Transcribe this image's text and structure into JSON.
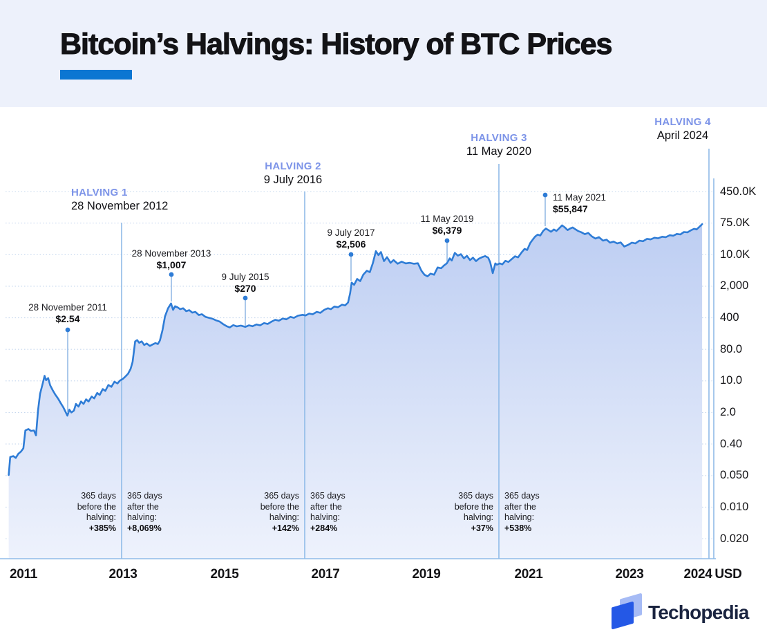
{
  "title": "Bitcoin’s Halvings: History of BTC Prices",
  "branding": {
    "logo_text": "Techopedia"
  },
  "colors": {
    "accent_bar": "#0b76d2",
    "halving_label": "#7d94e8",
    "price_line": "#2e7cd6",
    "halving_line": "#8fbbe8",
    "pointer_line": "#86b1e2",
    "grid": "#c6d7ee",
    "area_top": "#bccdf2",
    "area_bottom": "#eef2fc",
    "header_bg": "#edf1fb",
    "logo_dark": "#2458e6",
    "logo_light": "#a6bbf5",
    "logo_text": "#1a2440"
  },
  "halvings": [
    {
      "name": "HALVING 1",
      "date": "28 November 2012",
      "before": {
        "lines": [
          "365 days",
          "before the",
          "halving:"
        ],
        "pct": "+385%"
      },
      "after": {
        "lines": [
          "365 days",
          "after the",
          "halving:"
        ],
        "pct": "+8,069%"
      }
    },
    {
      "name": "HALVING 2",
      "date": "9 July 2016",
      "before": {
        "lines": [
          "365 days",
          "before the",
          "halving:"
        ],
        "pct": "+142%"
      },
      "after": {
        "lines": [
          "365 days",
          "after the",
          "halving:"
        ],
        "pct": "+284%"
      }
    },
    {
      "name": "HALVING 3",
      "date": "11 May 2020",
      "before": {
        "lines": [
          "365 days",
          "before the",
          "halving:"
        ],
        "pct": "+37%"
      },
      "after": {
        "lines": [
          "365 days",
          "after the",
          "halving:"
        ],
        "pct": "+538%"
      }
    },
    {
      "name": "HALVING 4",
      "date": "April 2024",
      "before": null,
      "after": null
    }
  ],
  "annotations": [
    {
      "date": "28 November 2011",
      "price": "$2.54"
    },
    {
      "date": "28 November 2013",
      "price": "$1,007"
    },
    {
      "date": "9 July 2015",
      "price": "$270"
    },
    {
      "date": "9 July 2017",
      "price": "$2,506"
    },
    {
      "date": "11 May 2019",
      "price": "$6,379"
    },
    {
      "date": "11 May 2021",
      "price": "$55,847"
    }
  ],
  "axis": {
    "x_labels": [
      "2011",
      "2013",
      "2015",
      "2017",
      "2019",
      "2021",
      "2023",
      "2024"
    ],
    "unit": "USD",
    "y_ticks": [
      {
        "label": "450.0K",
        "value": 450000
      },
      {
        "label": "75.0K",
        "value": 75000
      },
      {
        "label": "10.0K",
        "value": 10000
      },
      {
        "label": "2,000",
        "value": 2000
      },
      {
        "label": "400",
        "value": 400
      },
      {
        "label": "80.0",
        "value": 80
      },
      {
        "label": "10.0",
        "value": 10
      },
      {
        "label": "2.0",
        "value": 2
      },
      {
        "label": "0.40",
        "value": 0.4
      },
      {
        "label": "0.050",
        "value": 0.05
      },
      {
        "label": "0.010",
        "value": 0.01
      },
      {
        "label": "0.020",
        "value": 0.02
      }
    ]
  },
  "chart_data": {
    "type": "area",
    "title": "Bitcoin’s Halvings: History of BTC Prices",
    "x_unit": "year",
    "y_unit": "USD",
    "y_scale": "log (irregular round-number ticks as labeled)",
    "halving_events": [
      {
        "name": "HALVING 1",
        "date": "28 November 2012",
        "pct_365d_before": "+385%",
        "pct_365d_after": "+8,069%"
      },
      {
        "name": "HALVING 2",
        "date": "9 July 2016",
        "pct_365d_before": "+142%",
        "pct_365d_after": "+284%"
      },
      {
        "name": "HALVING 3",
        "date": "11 May 2020",
        "pct_365d_before": "+37%",
        "pct_365d_after": "+538%"
      },
      {
        "name": "HALVING 4",
        "date": "April 2024",
        "pct_365d_before": null,
        "pct_365d_after": null
      }
    ],
    "labeled_points": [
      {
        "date": "28 November 2011",
        "price_usd": 2.54
      },
      {
        "date": "28 November 2013",
        "price_usd": 1007
      },
      {
        "date": "9 July 2015",
        "price_usd": 270
      },
      {
        "date": "9 July 2017",
        "price_usd": 2506
      },
      {
        "date": "11 May 2019",
        "price_usd": 6379
      },
      {
        "date": "11 May 2021",
        "price_usd": 55847
      }
    ],
    "series": [
      {
        "name": "BTC price (USD)",
        "points": [
          [
            2010.71,
            0.052
          ],
          [
            2010.74,
            0.17
          ],
          [
            2010.8,
            0.18
          ],
          [
            2010.85,
            0.16
          ],
          [
            2010.9,
            0.21
          ],
          [
            2010.95,
            0.24
          ],
          [
            2011,
            0.3
          ],
          [
            2011.04,
            0.8
          ],
          [
            2011.1,
            0.86
          ],
          [
            2011.15,
            0.78
          ],
          [
            2011.21,
            0.8
          ],
          [
            2011.25,
            0.62
          ],
          [
            2011.29,
            2.2
          ],
          [
            2011.33,
            5.2
          ],
          [
            2011.38,
            8.5
          ],
          [
            2011.42,
            14
          ],
          [
            2011.45,
            10.5
          ],
          [
            2011.49,
            12
          ],
          [
            2011.53,
            8
          ],
          [
            2011.58,
            6.2
          ],
          [
            2011.63,
            5
          ],
          [
            2011.69,
            4
          ],
          [
            2011.74,
            3.2
          ],
          [
            2011.79,
            2.6
          ],
          [
            2011.83,
            2.1
          ],
          [
            2011.87,
            1.7
          ],
          [
            2011.91,
            2.3
          ],
          [
            2011.95,
            2
          ],
          [
            2012,
            2.2
          ],
          [
            2012.04,
            3.1
          ],
          [
            2012.09,
            2.7
          ],
          [
            2012.14,
            3.5
          ],
          [
            2012.19,
            3.1
          ],
          [
            2012.24,
            3.9
          ],
          [
            2012.29,
            3.5
          ],
          [
            2012.35,
            4.5
          ],
          [
            2012.4,
            4.1
          ],
          [
            2012.46,
            5.4
          ],
          [
            2012.51,
            4.9
          ],
          [
            2012.57,
            6.6
          ],
          [
            2012.62,
            6
          ],
          [
            2012.68,
            8.1
          ],
          [
            2012.74,
            7.4
          ],
          [
            2012.8,
            9.6
          ],
          [
            2012.86,
            8.8
          ],
          [
            2012.91,
            10.2
          ],
          [
            2012.97,
            11.5
          ],
          [
            2013.02,
            13.5
          ],
          [
            2013.07,
            16
          ],
          [
            2013.12,
            22
          ],
          [
            2013.16,
            35
          ],
          [
            2013.21,
            120
          ],
          [
            2013.25,
            128
          ],
          [
            2013.29,
            112
          ],
          [
            2013.34,
            120
          ],
          [
            2013.39,
            100
          ],
          [
            2013.44,
            108
          ],
          [
            2013.5,
            95
          ],
          [
            2013.55,
            102
          ],
          [
            2013.61,
            110
          ],
          [
            2013.66,
            105
          ],
          [
            2013.7,
            125
          ],
          [
            2013.75,
            210
          ],
          [
            2013.8,
            430
          ],
          [
            2013.86,
            650
          ],
          [
            2013.92,
            830
          ],
          [
            2013.96,
            600
          ],
          [
            2014,
            720
          ],
          [
            2014.05,
            680
          ],
          [
            2014.1,
            620
          ],
          [
            2014.16,
            650
          ],
          [
            2014.22,
            560
          ],
          [
            2014.28,
            590
          ],
          [
            2014.34,
            520
          ],
          [
            2014.4,
            540
          ],
          [
            2014.47,
            460
          ],
          [
            2014.53,
            480
          ],
          [
            2014.6,
            420
          ],
          [
            2014.67,
            400
          ],
          [
            2014.74,
            380
          ],
          [
            2014.81,
            350
          ],
          [
            2014.88,
            330
          ],
          [
            2014.95,
            290
          ],
          [
            2015.02,
            260
          ],
          [
            2015.08,
            245
          ],
          [
            2015.15,
            275
          ],
          [
            2015.22,
            258
          ],
          [
            2015.3,
            268
          ],
          [
            2015.39,
            252
          ],
          [
            2015.46,
            272
          ],
          [
            2015.53,
            260
          ],
          [
            2015.61,
            285
          ],
          [
            2015.68,
            272
          ],
          [
            2015.76,
            305
          ],
          [
            2015.83,
            292
          ],
          [
            2015.91,
            330
          ],
          [
            2015.98,
            360
          ],
          [
            2016.05,
            345
          ],
          [
            2016.13,
            385
          ],
          [
            2016.2,
            370
          ],
          [
            2016.28,
            420
          ],
          [
            2016.35,
            400
          ],
          [
            2016.43,
            445
          ],
          [
            2016.52,
            465
          ],
          [
            2016.58,
            450
          ],
          [
            2016.65,
            495
          ],
          [
            2016.72,
            478
          ],
          [
            2016.8,
            540
          ],
          [
            2016.87,
            515
          ],
          [
            2016.95,
            600
          ],
          [
            2017.02,
            650
          ],
          [
            2017.08,
            620
          ],
          [
            2017.15,
            710
          ],
          [
            2017.22,
            685
          ],
          [
            2017.3,
            780
          ],
          [
            2017.36,
            750
          ],
          [
            2017.42,
            870
          ],
          [
            2017.46,
            1400
          ],
          [
            2017.49,
            2400
          ],
          [
            2017.54,
            2150
          ],
          [
            2017.6,
            2900
          ],
          [
            2017.66,
            2600
          ],
          [
            2017.72,
            3600
          ],
          [
            2017.79,
            4400
          ],
          [
            2017.85,
            4100
          ],
          [
            2017.91,
            6500
          ],
          [
            2017.97,
            12500
          ],
          [
            2018.02,
            9800
          ],
          [
            2018.07,
            11800
          ],
          [
            2018.13,
            7200
          ],
          [
            2018.19,
            8800
          ],
          [
            2018.26,
            6600
          ],
          [
            2018.32,
            7600
          ],
          [
            2018.4,
            6300
          ],
          [
            2018.48,
            7000
          ],
          [
            2018.56,
            6400
          ],
          [
            2018.64,
            6600
          ],
          [
            2018.72,
            6300
          ],
          [
            2018.8,
            6450
          ],
          [
            2018.87,
            4400
          ],
          [
            2018.93,
            3600
          ],
          [
            2018.99,
            3300
          ],
          [
            2019.05,
            3800
          ],
          [
            2019.12,
            3600
          ],
          [
            2019.19,
            5200
          ],
          [
            2019.26,
            5000
          ],
          [
            2019.32,
            5800
          ],
          [
            2019.37,
            6379
          ],
          [
            2019.43,
            8300
          ],
          [
            2019.47,
            7400
          ],
          [
            2019.53,
            11200
          ],
          [
            2019.59,
            9500
          ],
          [
            2019.65,
            10300
          ],
          [
            2019.71,
            8300
          ],
          [
            2019.77,
            9400
          ],
          [
            2019.83,
            7600
          ],
          [
            2019.89,
            8600
          ],
          [
            2019.95,
            7200
          ],
          [
            2020.01,
            8200
          ],
          [
            2020.07,
            8800
          ],
          [
            2020.13,
            9300
          ],
          [
            2020.19,
            8600
          ],
          [
            2020.23,
            6800
          ],
          [
            2020.28,
            3900
          ],
          [
            2020.33,
            6400
          ],
          [
            2020.36,
            6000
          ],
          [
            2020.42,
            6400
          ],
          [
            2020.47,
            6100
          ],
          [
            2020.53,
            7300
          ],
          [
            2020.59,
            6900
          ],
          [
            2020.65,
            7900
          ],
          [
            2020.72,
            9200
          ],
          [
            2020.78,
            8700
          ],
          [
            2020.85,
            11500
          ],
          [
            2020.91,
            14500
          ],
          [
            2020.96,
            13500
          ],
          [
            2021.02,
            21000
          ],
          [
            2021.07,
            26000
          ],
          [
            2021.12,
            32000
          ],
          [
            2021.17,
            36000
          ],
          [
            2021.22,
            34000
          ],
          [
            2021.28,
            46000
          ],
          [
            2021.33,
            53000
          ],
          [
            2021.38,
            48000
          ],
          [
            2021.43,
            43000
          ],
          [
            2021.49,
            50000
          ],
          [
            2021.54,
            45500
          ],
          [
            2021.6,
            55000
          ],
          [
            2021.65,
            65000
          ],
          [
            2021.7,
            58000
          ],
          [
            2021.76,
            48000
          ],
          [
            2021.81,
            53000
          ],
          [
            2021.86,
            57000
          ],
          [
            2021.91,
            51000
          ],
          [
            2021.97,
            45000
          ],
          [
            2022.03,
            42000
          ],
          [
            2022.1,
            37000
          ],
          [
            2022.17,
            40000
          ],
          [
            2022.24,
            32000
          ],
          [
            2022.31,
            28000
          ],
          [
            2022.38,
            30500
          ],
          [
            2022.46,
            24500
          ],
          [
            2022.53,
            26000
          ],
          [
            2022.6,
            21500
          ],
          [
            2022.67,
            23000
          ],
          [
            2022.74,
            20500
          ],
          [
            2022.81,
            21800
          ],
          [
            2022.88,
            16800
          ],
          [
            2022.96,
            18800
          ],
          [
            2023.03,
            21500
          ],
          [
            2023.1,
            20500
          ],
          [
            2023.18,
            24500
          ],
          [
            2023.25,
            23500
          ],
          [
            2023.33,
            27500
          ],
          [
            2023.4,
            26500
          ],
          [
            2023.48,
            29500
          ],
          [
            2023.55,
            28500
          ],
          [
            2023.63,
            31500
          ],
          [
            2023.7,
            30500
          ],
          [
            2023.78,
            34500
          ],
          [
            2023.85,
            33500
          ],
          [
            2023.92,
            37500
          ],
          [
            2023.99,
            36500
          ],
          [
            2024.06,
            42500
          ],
          [
            2024.13,
            41500
          ],
          [
            2024.2,
            47500
          ],
          [
            2024.26,
            52000
          ],
          [
            2024.31,
            50000
          ],
          [
            2024.37,
            60000
          ],
          [
            2024.42,
            70000
          ]
        ]
      }
    ]
  }
}
